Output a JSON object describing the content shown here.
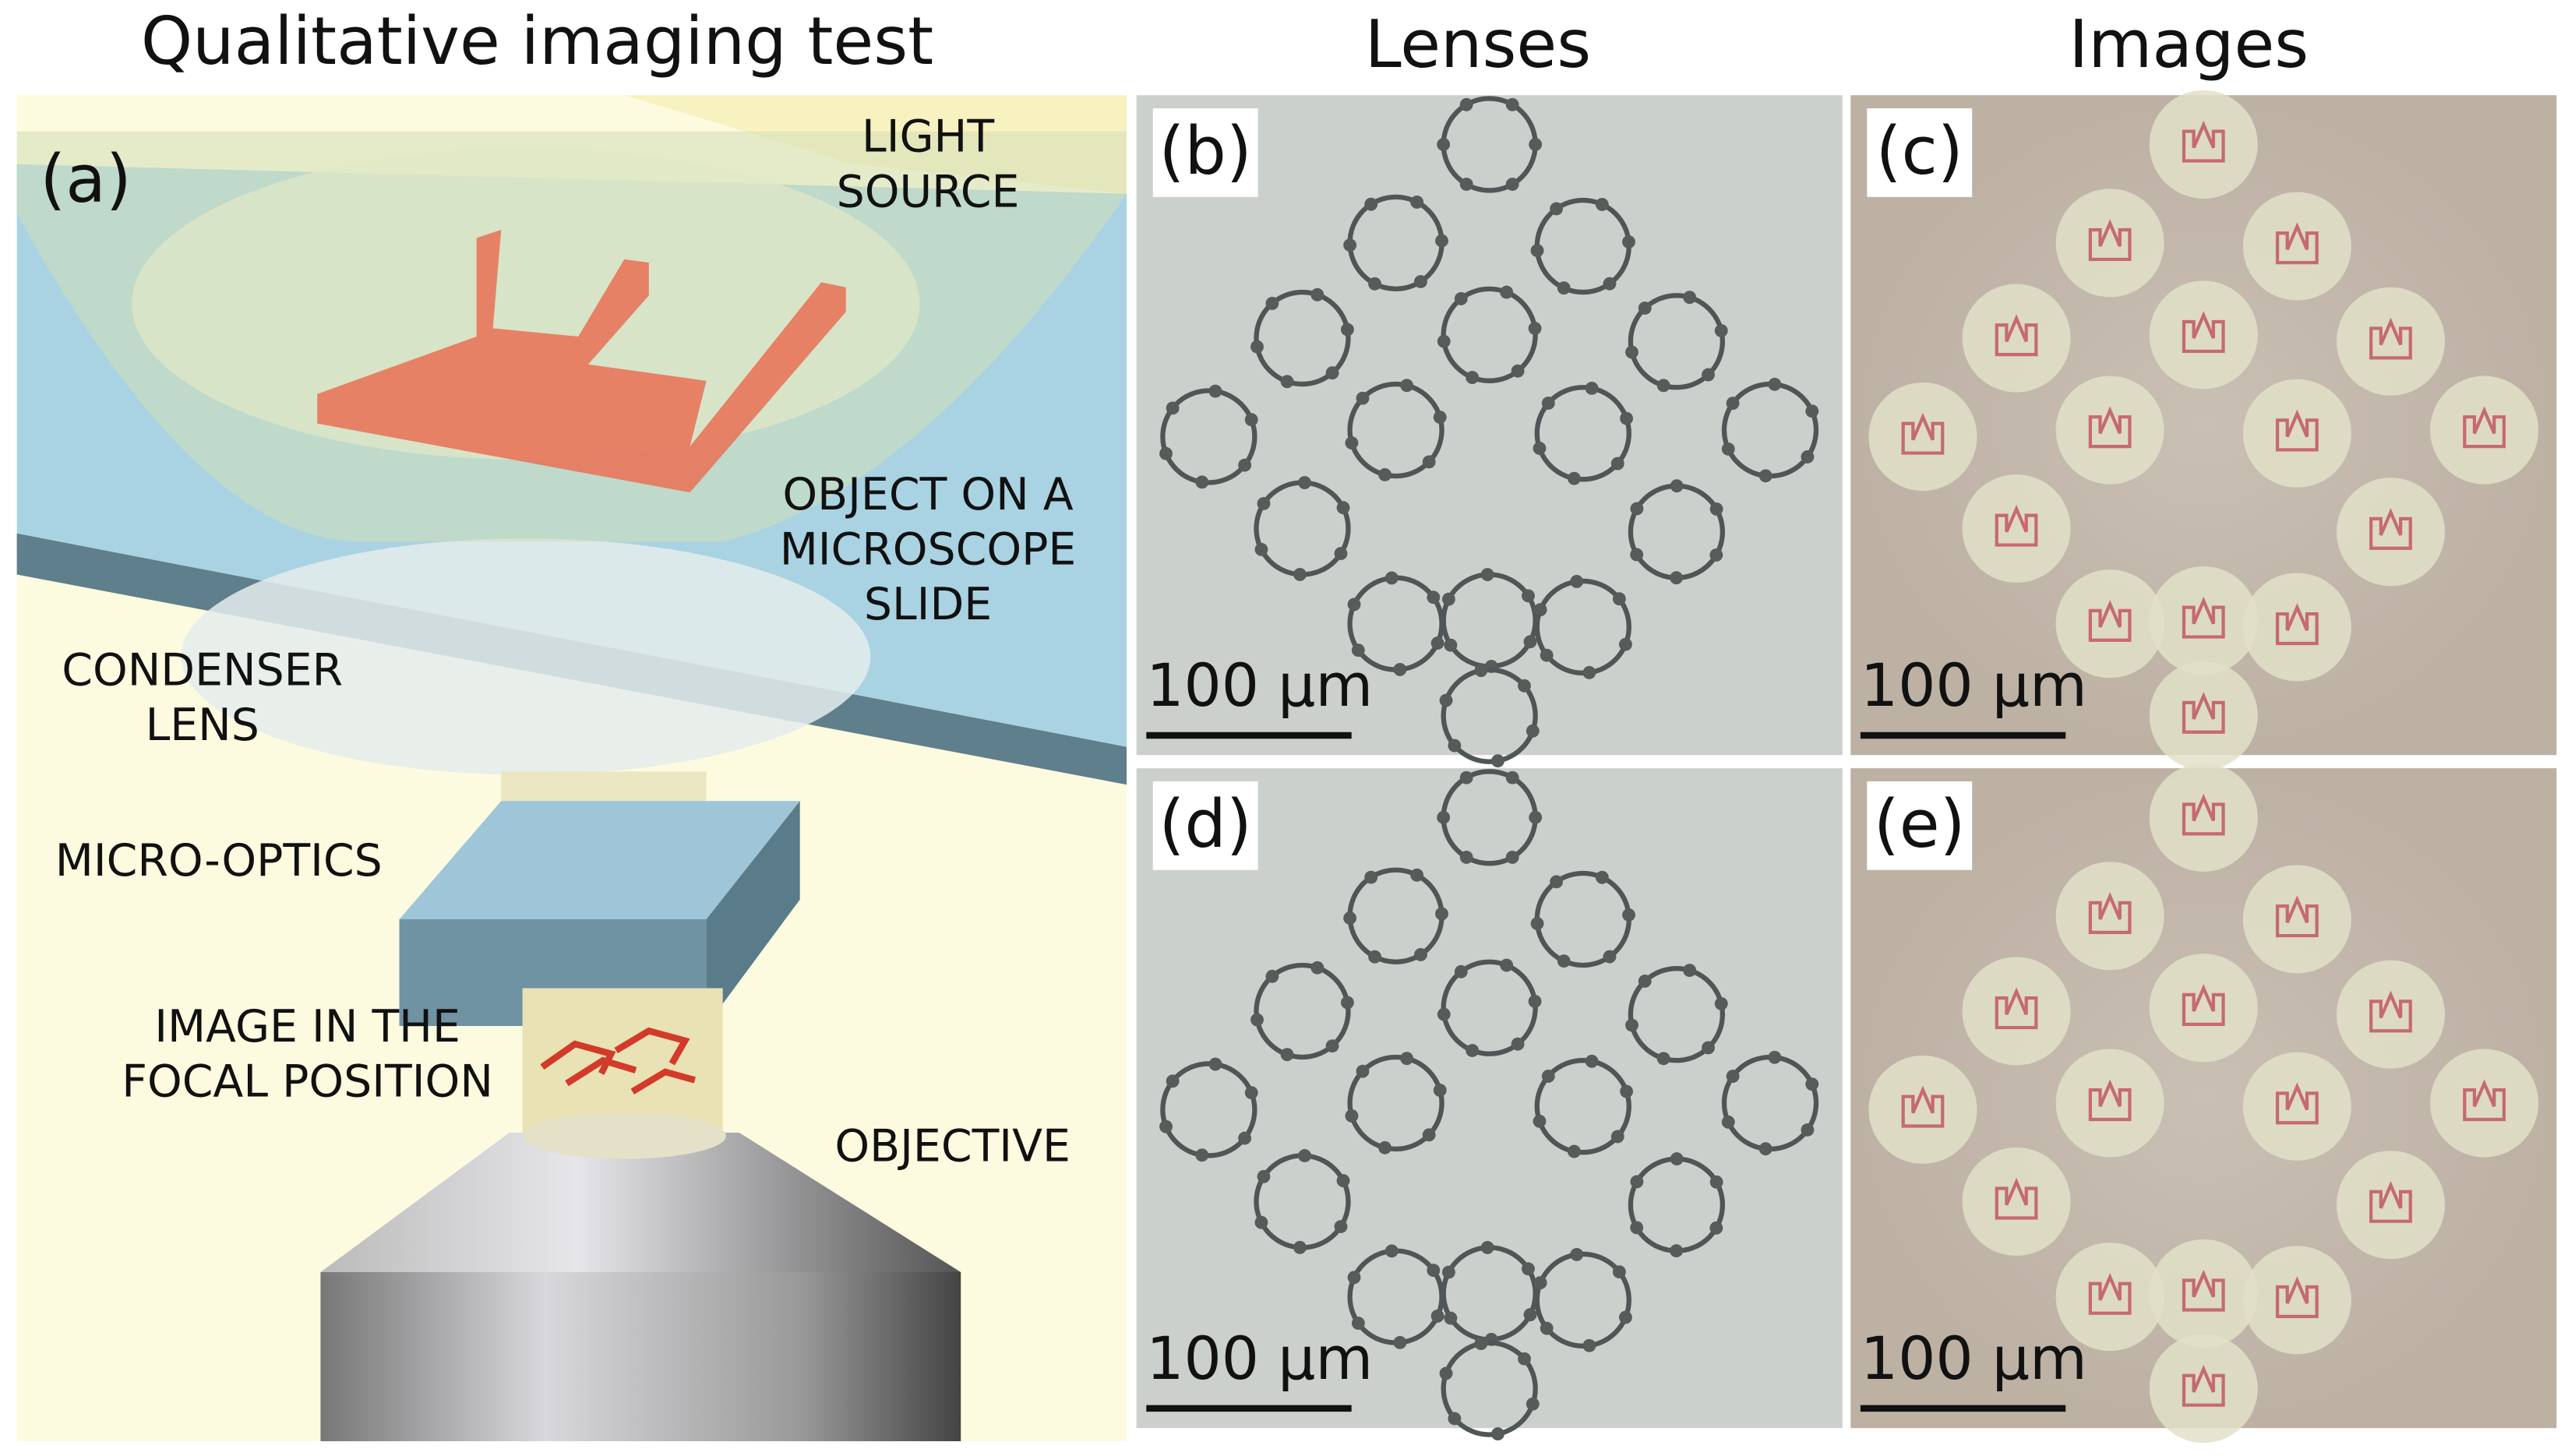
{
  "titles": [
    "Qualitative imaging test",
    "Lenses",
    "Images"
  ],
  "panels": [
    {
      "label": "(a)",
      "annotations": [
        [
          "LIGHT",
          "SOURCE"
        ],
        [
          "OBJECT ON A",
          "MICROSCOPE",
          "SLIDE"
        ],
        [
          "CONDENSER",
          "LENS"
        ],
        [
          "MICRO-OPTICS"
        ],
        [
          "IMAGE IN THE",
          "FOCAL POSITION"
        ],
        [
          "OBJECTIVE"
        ]
      ]
    },
    {
      "label": "(b)",
      "scale_bar": "100 µm"
    },
    {
      "label": "(c)",
      "scale_bar": "100 µm"
    },
    {
      "label": "(d)",
      "scale_bar": "100 µm"
    },
    {
      "label": "(e)",
      "scale_bar": "100 µm"
    }
  ]
}
